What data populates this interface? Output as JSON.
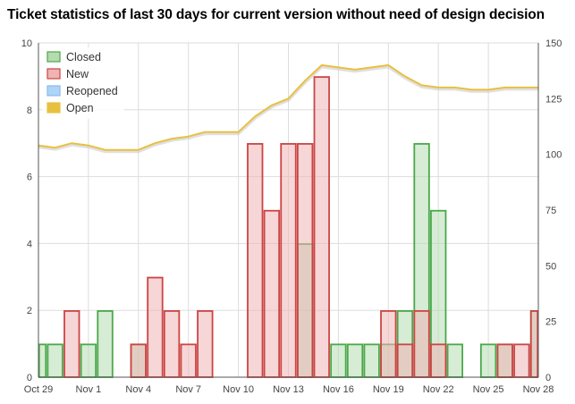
{
  "chart_data": {
    "type": "bar",
    "title": "Ticket statistics of last 30 days for current version without need of design decision",
    "x": [
      "Oct 29",
      "Oct 30",
      "Oct 31",
      "Nov 1",
      "Nov 2",
      "Nov 3",
      "Nov 4",
      "Nov 5",
      "Nov 6",
      "Nov 7",
      "Nov 8",
      "Nov 9",
      "Nov 10",
      "Nov 11",
      "Nov 12",
      "Nov 13",
      "Nov 14",
      "Nov 15",
      "Nov 16",
      "Nov 17",
      "Nov 18",
      "Nov 19",
      "Nov 20",
      "Nov 21",
      "Nov 22",
      "Nov 23",
      "Nov 24",
      "Nov 25",
      "Nov 26",
      "Nov 27",
      "Nov 28"
    ],
    "x_tick_labels": [
      "Oct 29",
      "Nov 1",
      "Nov 4",
      "Nov 7",
      "Nov 10",
      "Nov 13",
      "Nov 16",
      "Nov 19",
      "Nov 22",
      "Nov 25",
      "Nov 28"
    ],
    "y_left_ticks": [
      "0",
      "2",
      "4",
      "6",
      "8",
      "10"
    ],
    "y_right_ticks": [
      "0",
      "25",
      "50",
      "75",
      "100",
      "125",
      "150"
    ],
    "ylim_left": [
      0,
      10
    ],
    "ylim_right": [
      0,
      150
    ],
    "grid": true,
    "legend_placement": "top-left",
    "series": [
      {
        "name": "Closed",
        "axis": "left",
        "kind": "bar",
        "color": "#4aa84a",
        "fill": "#b4dcb0",
        "values": [
          1,
          1,
          0,
          1,
          2,
          0,
          1,
          0,
          0,
          0,
          0,
          0,
          0,
          0,
          0,
          0,
          4,
          0,
          1,
          1,
          1,
          1,
          2,
          7,
          5,
          1,
          0,
          1,
          1,
          0,
          2
        ]
      },
      {
        "name": "New",
        "axis": "left",
        "kind": "bar",
        "color": "#cc4444",
        "fill": "#eeb4b4",
        "values": [
          0,
          0,
          2,
          0,
          0,
          0,
          1,
          3,
          2,
          1,
          2,
          0,
          0,
          7,
          5,
          7,
          7,
          9,
          0,
          0,
          0,
          2,
          1,
          2,
          1,
          0,
          0,
          0,
          1,
          1,
          2
        ]
      },
      {
        "name": "Reopened",
        "axis": "left",
        "kind": "bar",
        "color": "#88bbee",
        "fill": "#aed4f6",
        "values": [
          0,
          0,
          0,
          0,
          0,
          0,
          0,
          0,
          0,
          0,
          0,
          0,
          0,
          0,
          0,
          0,
          0,
          0,
          0,
          0,
          0,
          0,
          0,
          0,
          0,
          0,
          0,
          0,
          0,
          0,
          0
        ]
      },
      {
        "name": "Open",
        "axis": "right",
        "kind": "line",
        "color": "#e8c040",
        "values": [
          104,
          103,
          105,
          104,
          102,
          102,
          102,
          105,
          107,
          108,
          110,
          110,
          110,
          117,
          122,
          125,
          133,
          140,
          139,
          138,
          139,
          140,
          135,
          131,
          130,
          130,
          129,
          129,
          130,
          130,
          130
        ]
      }
    ]
  }
}
